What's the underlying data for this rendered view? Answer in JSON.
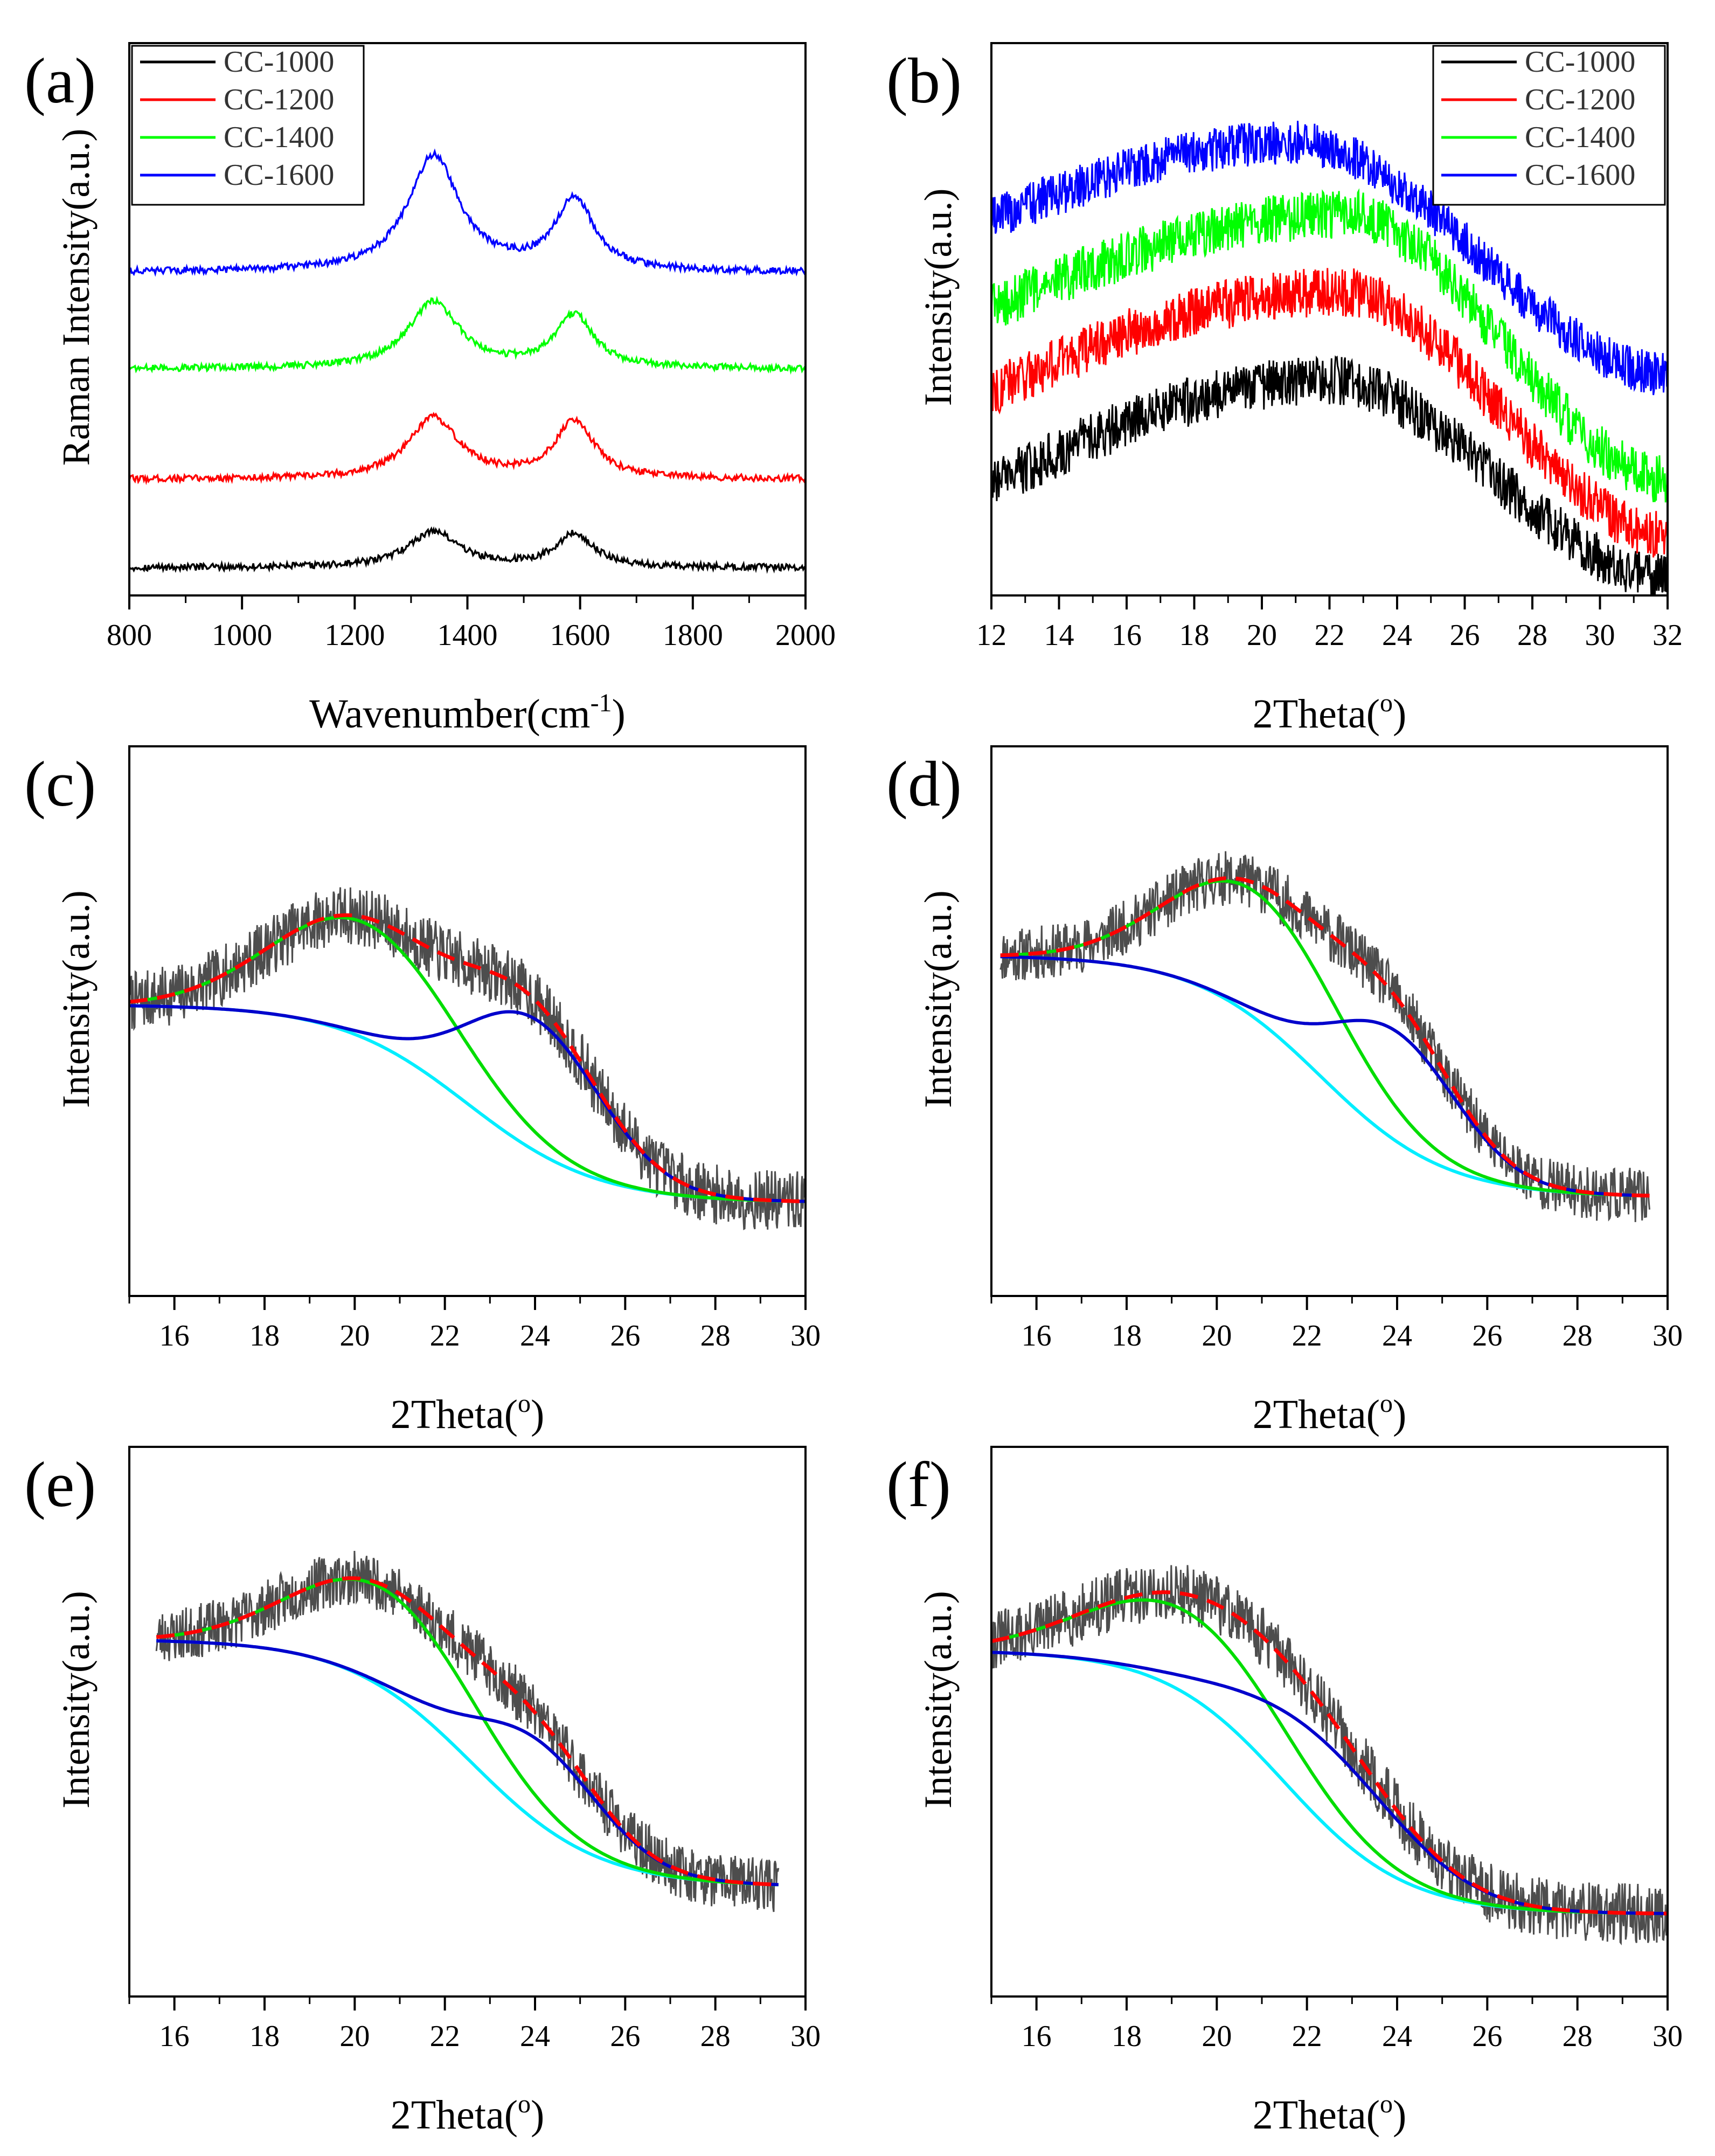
{
  "chart_data": [
    {
      "panel": "(a)",
      "type": "line",
      "xlabel": "Wavenumber(cm-1)",
      "xlabel_base": "Wavenumber(cm",
      "xlabel_sup": "-1",
      "xlabel_end": ")",
      "ylabel": "Raman Intensity(a.u.)",
      "xlim": [
        800,
        2000
      ],
      "ylim": [
        0,
        10
      ],
      "xticks": [
        800,
        1000,
        1200,
        1400,
        1600,
        1800,
        2000
      ],
      "minor_step": 100,
      "legend": "top-left",
      "series": [
        {
          "name": "CC-1000",
          "color": "#000000",
          "baseline": 0.5,
          "d_height": 0.65,
          "g_height": 0.6,
          "noise": 0.06
        },
        {
          "name": "CC-1200",
          "color": "#ff0000",
          "baseline": 2.1,
          "d_height": 1.1,
          "g_height": 1.05,
          "noise": 0.06
        },
        {
          "name": "CC-1400",
          "color": "#00ff00",
          "baseline": 4.1,
          "d_height": 1.2,
          "g_height": 0.95,
          "noise": 0.06
        },
        {
          "name": "CC-1600",
          "color": "#0000ff",
          "baseline": 5.85,
          "d_height": 2.1,
          "g_height": 1.3,
          "noise": 0.06
        }
      ],
      "peaks": {
        "D": 1340,
        "G": 1590
      }
    },
    {
      "panel": "(b)",
      "type": "line",
      "xlabel": "2Theta(o)",
      "xlabel_base": "2Theta(",
      "xlabel_sup": "o",
      "xlabel_end": ")",
      "ylabel": "Intensity(a.u.)",
      "xlim": [
        12,
        32
      ],
      "ylim": [
        0,
        10
      ],
      "xticks": [
        12,
        14,
        16,
        18,
        20,
        22,
        24,
        26,
        28,
        30,
        32
      ],
      "minor_step": 1,
      "legend": "top-right",
      "series": [
        {
          "name": "CC-1000",
          "color": "#000000",
          "start": 2.0,
          "peak": 3.9,
          "end": 0.3,
          "center": 22,
          "noise": 0.45
        },
        {
          "name": "CC-1200",
          "color": "#ff0000",
          "start": 3.7,
          "peak": 5.5,
          "end": 1.1,
          "center": 22.3,
          "noise": 0.45
        },
        {
          "name": "CC-1400",
          "color": "#00ff00",
          "start": 5.2,
          "peak": 6.9,
          "end": 2.1,
          "center": 22.5,
          "noise": 0.45
        },
        {
          "name": "CC-1600",
          "color": "#0000ff",
          "start": 6.8,
          "peak": 8.2,
          "end": 4.0,
          "center": 21.0,
          "noise": 0.4
        }
      ]
    },
    {
      "panel": "(c)",
      "type": "line",
      "xlabel": "2Theta(o)",
      "xlabel_base": "2Theta(",
      "xlabel_sup": "o",
      "xlabel_end": ")",
      "ylabel": "Intensity(a.u.)",
      "xlim": [
        15,
        30
      ],
      "ylim": [
        0,
        10
      ],
      "xticks": [
        16,
        18,
        20,
        22,
        24,
        26,
        28,
        30
      ],
      "minor_step": 1,
      "fit": {
        "xr": [
          15,
          30
        ],
        "b0": 5.3,
        "b1": 1.7,
        "bc": 22.5,
        "bw": 3.2,
        "g1c": 20.2,
        "g1h": 2.1,
        "g1w": 2.0,
        "g2c": 24.0,
        "g2h": 2.4,
        "g2w": 1.5,
        "noise": 0.55,
        "seed": 7
      }
    },
    {
      "panel": "(d)",
      "type": "line",
      "xlabel": "2Theta(o)",
      "xlabel_base": "2Theta(",
      "xlabel_sup": "o",
      "xlabel_end": ")",
      "ylabel": "Intensity(a.u.)",
      "xlim": [
        15,
        30
      ],
      "ylim": [
        0,
        10
      ],
      "xticks": [
        16,
        18,
        20,
        22,
        24,
        26,
        28,
        30
      ],
      "minor_step": 1,
      "fit": {
        "xr": [
          15.2,
          29.6
        ],
        "b0": 6.2,
        "b1": 1.8,
        "bc": 22.3,
        "bw": 3.1,
        "g1c": 20.9,
        "g1h": 2.3,
        "g1w": 1.9,
        "g2c": 24.0,
        "g2h": 2.0,
        "g2w": 1.4,
        "noise": 0.5,
        "seed": 11
      }
    },
    {
      "panel": "(e)",
      "type": "line",
      "xlabel": "2Theta(o)",
      "xlabel_base": "2Theta(",
      "xlabel_sup": "o",
      "xlabel_end": ")",
      "ylabel": "Intensity(a.u.)",
      "xlim": [
        15,
        30
      ],
      "ylim": [
        0,
        10
      ],
      "xticks": [
        16,
        18,
        20,
        22,
        24,
        26,
        28,
        30
      ],
      "minor_step": 1,
      "fit": {
        "xr": [
          15.6,
          29.4
        ],
        "b0": 6.5,
        "b1": 2.0,
        "bc": 22.6,
        "bw": 3.1,
        "g1c": 20.7,
        "g1h": 1.8,
        "g1w": 2.0,
        "g2c": 24.1,
        "g2h": 1.5,
        "g2w": 1.4,
        "noise": 0.5,
        "seed": 23
      }
    },
    {
      "panel": "(f)",
      "type": "line",
      "xlabel": "2Theta(o)",
      "xlabel_base": "2Theta(",
      "xlabel_sup": "o",
      "xlabel_end": ")",
      "ylabel": "Intensity(a.u.)",
      "xlim": [
        15,
        30
      ],
      "ylim": [
        0,
        10
      ],
      "xticks": [
        16,
        18,
        20,
        22,
        24,
        26,
        28,
        30
      ],
      "minor_step": 1,
      "fit": {
        "xr": [
          15,
          30
        ],
        "b0": 6.3,
        "b1": 1.5,
        "bc": 21.5,
        "bw": 3.0,
        "g1c": 19.4,
        "g1h": 1.5,
        "g1w": 2.2,
        "g2c": 22.5,
        "g2h": 1.5,
        "g2w": 1.8,
        "noise": 0.55,
        "seed": 31
      }
    }
  ],
  "fit_colors": {
    "raw": "#4d4d4d",
    "envelope": "#ff0000",
    "peak1": "#00dd00",
    "peak2": "#0000cc",
    "background": "#00eeff"
  }
}
